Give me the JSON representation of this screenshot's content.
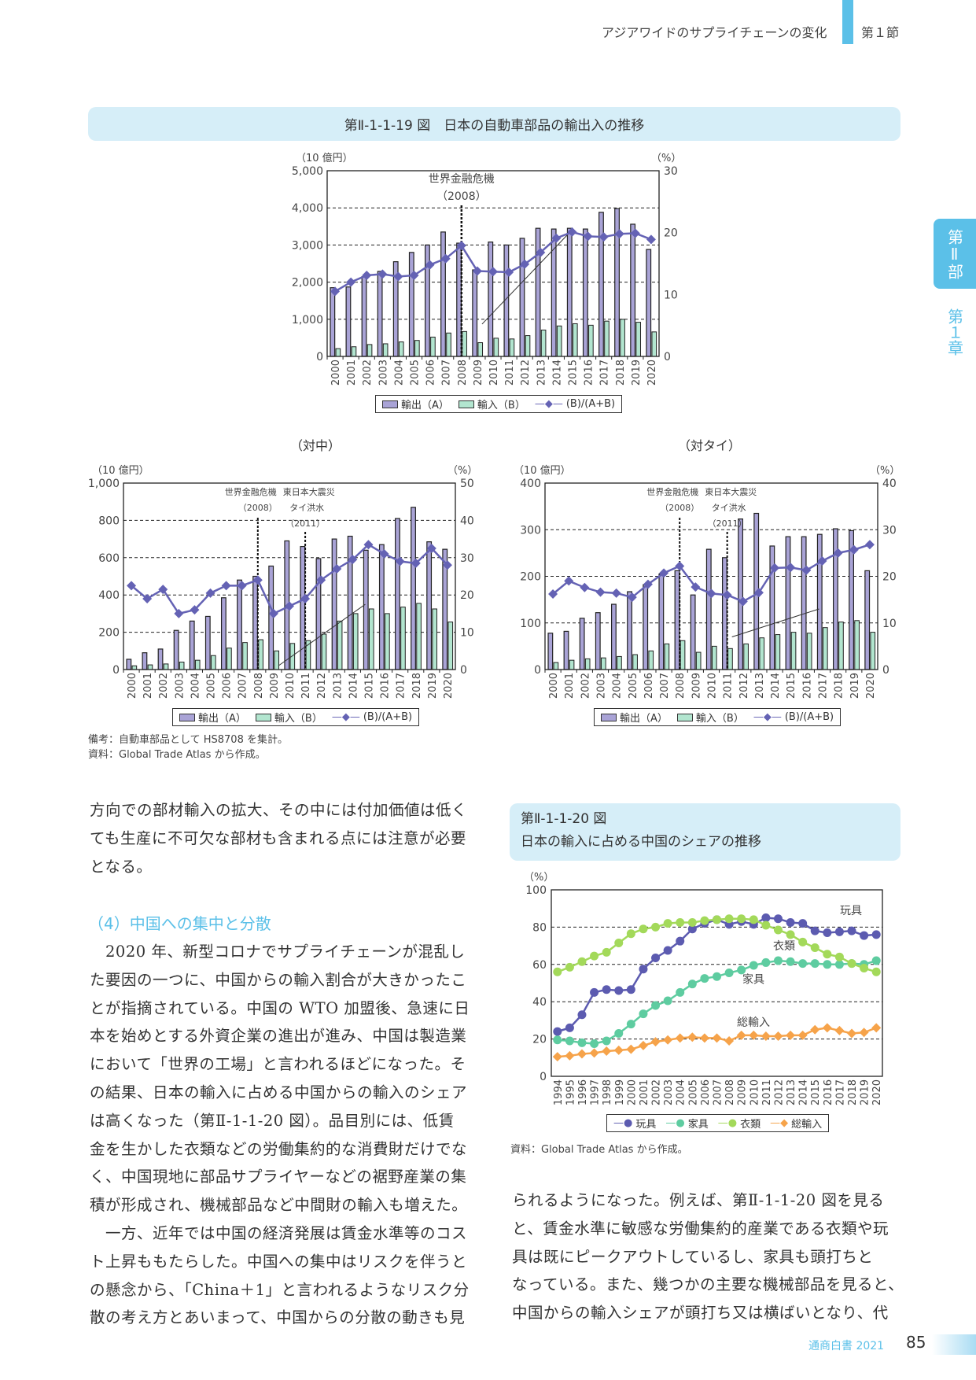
{
  "header": {
    "section_title": "アジアワイドのサプライチェーンの変化",
    "section_num": "第１節"
  },
  "side_tab": {
    "part": "第Ⅱ部",
    "chapter": "第１章"
  },
  "fig19": {
    "title": "第Ⅱ-1-1-19 図　日本の自動車部品の輸出入の推移",
    "sub_china": "（対中）",
    "sub_thai": "（対タイ）",
    "note1": "備考：自動車部品として HS8708 を集計。",
    "note2": "資料：Global Trade Atlas から作成。"
  },
  "legend19": {
    "exports": "輸出（A）",
    "imports": "輸入（B）",
    "ratio": "(B)/(A+B)"
  },
  "fig20": {
    "title_line1": "第Ⅱ-1-1-20 図",
    "title_line2": "日本の輸入に占める中国のシェアの推移",
    "source": "資料：Global Trade Atlas から作成。"
  },
  "colors": {
    "exports": "#a9a3d6",
    "imports": "#b2e5cf",
    "ratio": "#6462b4",
    "toys": "#5c5bb0",
    "furniture": "#5ecca0",
    "clothing": "#a3d95a",
    "total": "#f6a34a",
    "band": "#d6eef8",
    "accent": "#5bc0e8"
  },
  "body_left": {
    "lines_top": [
      "方向での部材輸入の拡大、その中には付加価値は低く",
      "ても生産に不可欠な部材も含まれる点には注意が必要",
      "となる。"
    ],
    "heading": "（4）中国への集中と分散",
    "lines": [
      "　2020 年、新型コロナでサプライチェーンが混乱し",
      "た要因の一つに、中国からの輸入割合が大きかったこ",
      "とが指摘されている。中国の WTO 加盟後、急速に日",
      "本を始めとする外資企業の進出が進み、中国は製造業",
      "において「世界の工場」と言われるほどになった。そ",
      "の結果、日本の輸入に占める中国からの輸入のシェア",
      "は高くなった（第Ⅱ-1-1-20 図）。品目別には、低賃",
      "金を生かした衣類などの労働集約的な消費財だけでな",
      "く、中国現地に部品サプライヤーなどの裾野産業の集",
      "積が形成され、機械部品など中間財の輸入も増えた。",
      "　一方、近年では中国の経済発展は賃金水準等のコス",
      "ト上昇ももたらした。中国への集中はリスクを伴うと",
      "の懸念から、「China＋1」と言われるようなリスク分",
      "散の考え方とあいまって、中国からの分散の動きも見"
    ]
  },
  "body_right": {
    "lines": [
      "られるようになった。例えば、第Ⅱ-1-1-20 図を見る",
      "と、賃金水準に敏感な労働集約的産業である衣類や玩",
      "具は既にピークアウトしているし、家具も頭打ちと",
      "なっている。また、幾つかの主要な機械部品を見ると、",
      "中国からの輸入シェアが頭打ち又は横ばいとなり、代"
    ]
  },
  "footer": {
    "book": "通商白書 2021",
    "page": "85"
  },
  "chart_data": [
    {
      "type": "bar",
      "id": "total",
      "title": "日本の自動車部品の輸出入の推移",
      "yunit_left": "（10 億円）",
      "yunit_right": "（%）",
      "categories": [
        "2000",
        "2001",
        "2002",
        "2003",
        "2004",
        "2005",
        "2006",
        "2007",
        "2008",
        "2009",
        "2010",
        "2011",
        "2012",
        "2013",
        "2014",
        "2015",
        "2016",
        "2017",
        "2018",
        "2019",
        "2020"
      ],
      "ylim": [
        0,
        5000
      ],
      "yticks": [
        0,
        1000,
        2000,
        3000,
        4000,
        5000
      ],
      "ytick_labels": [
        "0",
        "1,000",
        "2,000",
        "3,000",
        "4,000",
        "5,000"
      ],
      "y2lim": [
        0,
        30
      ],
      "y2ticks": [
        "0",
        "10",
        "20",
        "30"
      ],
      "series": [
        {
          "name": "輸出（A）",
          "values": [
            1850,
            1870,
            2150,
            2290,
            2550,
            2800,
            3000,
            3350,
            3050,
            2330,
            3080,
            3000,
            3180,
            3450,
            3430,
            3450,
            3430,
            3880,
            3980,
            3560,
            2880
          ]
        },
        {
          "name": "輸入（B）",
          "values": [
            210,
            260,
            320,
            340,
            390,
            430,
            520,
            630,
            670,
            370,
            490,
            470,
            560,
            710,
            820,
            880,
            840,
            950,
            1000,
            920,
            660
          ]
        },
        {
          "name": "(B)/(A+B)",
          "axis": "right",
          "values": [
            10.5,
            12,
            13.1,
            13.3,
            12.9,
            13.1,
            14.8,
            15.8,
            17.9,
            13.8,
            13.7,
            13.6,
            14.9,
            16.8,
            19.1,
            20.1,
            19.4,
            19.3,
            19.8,
            19.9,
            18.9
          ]
        }
      ],
      "annotations": [
        {
          "label": "世界金融危機",
          "sub": "（2008）",
          "at": "2008"
        }
      ]
    },
    {
      "type": "bar",
      "id": "china",
      "title": "（対中）",
      "yunit_left": "（10 億円）",
      "yunit_right": "（%）",
      "categories": [
        "2000",
        "2001",
        "2002",
        "2003",
        "2004",
        "2005",
        "2006",
        "2007",
        "2008",
        "2009",
        "2010",
        "2011",
        "2012",
        "2013",
        "2014",
        "2015",
        "2016",
        "2017",
        "2018",
        "2019",
        "2020"
      ],
      "ylim": [
        0,
        1000
      ],
      "yticks": [
        0,
        200,
        400,
        600,
        800,
        1000
      ],
      "ytick_labels": [
        "0",
        "200",
        "400",
        "600",
        "800",
        "1,000"
      ],
      "y2lim": [
        0,
        50
      ],
      "y2ticks": [
        "0",
        "10",
        "20",
        "30",
        "40",
        "50"
      ],
      "series": [
        {
          "name": "輸出（A）",
          "values": [
            55,
            90,
            110,
            210,
            260,
            285,
            385,
            480,
            500,
            555,
            690,
            660,
            595,
            700,
            715,
            640,
            670,
            810,
            870,
            685,
            645
          ]
        },
        {
          "name": "輸入（B）",
          "values": [
            20,
            25,
            30,
            40,
            50,
            75,
            115,
            145,
            160,
            100,
            140,
            155,
            190,
            260,
            300,
            325,
            300,
            335,
            355,
            325,
            255
          ]
        },
        {
          "name": "(B)/(A+B)",
          "axis": "right",
          "values": [
            22.5,
            19,
            21.5,
            15,
            16,
            20.5,
            22.5,
            22.5,
            24,
            15,
            17,
            19,
            24,
            27,
            29.5,
            33.5,
            31,
            29,
            28.5,
            32.5,
            28
          ]
        }
      ],
      "annotations": [
        {
          "label": "世界金融危機",
          "sub": "（2008）",
          "at": "2008"
        },
        {
          "label": "東日本大震災",
          "label2": "タイ洪水",
          "sub": "（2011）",
          "at": "2011"
        }
      ]
    },
    {
      "type": "bar",
      "id": "thai",
      "title": "（対タイ）",
      "yunit_left": "（10 億円）",
      "yunit_right": "（%）",
      "categories": [
        "2000",
        "2001",
        "2002",
        "2003",
        "2004",
        "2005",
        "2006",
        "2007",
        "2008",
        "2009",
        "2010",
        "2011",
        "2012",
        "2013",
        "2014",
        "2015",
        "2016",
        "2017",
        "2018",
        "2019",
        "2020"
      ],
      "ylim": [
        0,
        400
      ],
      "yticks": [
        0,
        100,
        200,
        300,
        400
      ],
      "ytick_labels": [
        "0",
        "100",
        "200",
        "300",
        "400"
      ],
      "y2lim": [
        0,
        40
      ],
      "y2ticks": [
        "0",
        "10",
        "20",
        "30",
        "40"
      ],
      "series": [
        {
          "name": "輸出（A）",
          "values": [
            78,
            82,
            110,
            122,
            140,
            167,
            182,
            205,
            212,
            160,
            258,
            240,
            323,
            335,
            265,
            285,
            285,
            290,
            302,
            298,
            212
          ]
        },
        {
          "name": "輸入（B）",
          "values": [
            15,
            20,
            23,
            25,
            28,
            32,
            40,
            55,
            62,
            37,
            50,
            45,
            55,
            68,
            75,
            80,
            78,
            90,
            102,
            105,
            80
          ]
        },
        {
          "name": "(B)/(A+B)",
          "axis": "right",
          "values": [
            16.2,
            19,
            17.6,
            16.6,
            16.4,
            15.5,
            18.3,
            20.7,
            22.2,
            17.7,
            16.3,
            16,
            14.6,
            16.5,
            21.8,
            21.9,
            21.3,
            23.3,
            25,
            25.7,
            26.8
          ]
        }
      ],
      "annotations": [
        {
          "label": "世界金融危機",
          "sub": "（2008）",
          "at": "2008"
        },
        {
          "label": "東日本大震災",
          "label2": "タイ洪水",
          "sub": "（2011）",
          "at": "2011"
        }
      ]
    },
    {
      "type": "line",
      "id": "share",
      "title": "日本の輸入に占める中国のシェアの推移",
      "yunit": "（%）",
      "ylim": [
        0,
        100
      ],
      "yticks": [
        "0",
        "20",
        "40",
        "60",
        "80",
        "100"
      ],
      "categories": [
        "1994",
        "1995",
        "1996",
        "1997",
        "1998",
        "1999",
        "2000",
        "2001",
        "2002",
        "2003",
        "2004",
        "2005",
        "2006",
        "2007",
        "2008",
        "2009",
        "2010",
        "2011",
        "2012",
        "2013",
        "2014",
        "2015",
        "2016",
        "2017",
        "2018",
        "2019",
        "2020"
      ],
      "series": [
        {
          "name": "玩具",
          "values": [
            24,
            26,
            33,
            45,
            46.5,
            46,
            46.5,
            57.5,
            63.5,
            67.5,
            72.5,
            79,
            82,
            84,
            81.5,
            83,
            81.5,
            85,
            84.5,
            82.5,
            82,
            78,
            77,
            77.5,
            78,
            75.5,
            76
          ]
        },
        {
          "name": "家具",
          "values": [
            19.5,
            19,
            18,
            17.5,
            19,
            23,
            28,
            33.5,
            38,
            40.5,
            45,
            49.5,
            52.5,
            53.5,
            55.5,
            57,
            59.5,
            61,
            62,
            61.5,
            60.5,
            60.5,
            60,
            60,
            60.5,
            60,
            62
          ]
        },
        {
          "name": "衣類",
          "values": [
            56,
            58.5,
            61.5,
            64.5,
            66.5,
            71.5,
            76.5,
            79,
            80,
            82,
            82.5,
            82.5,
            83.5,
            84,
            84.5,
            84.5,
            84,
            81,
            78.5,
            76,
            72,
            69,
            65.5,
            64,
            60.5,
            58,
            56
          ]
        },
        {
          "name": "総輸入",
          "values": [
            10.5,
            11,
            12,
            12.5,
            13.5,
            14,
            14.5,
            16.5,
            18.5,
            19.5,
            20.5,
            21,
            20.5,
            20.5,
            19,
            22,
            22,
            21.5,
            21.5,
            22,
            22,
            25,
            26,
            24.5,
            23,
            23.5,
            26
          ]
        }
      ]
    }
  ]
}
